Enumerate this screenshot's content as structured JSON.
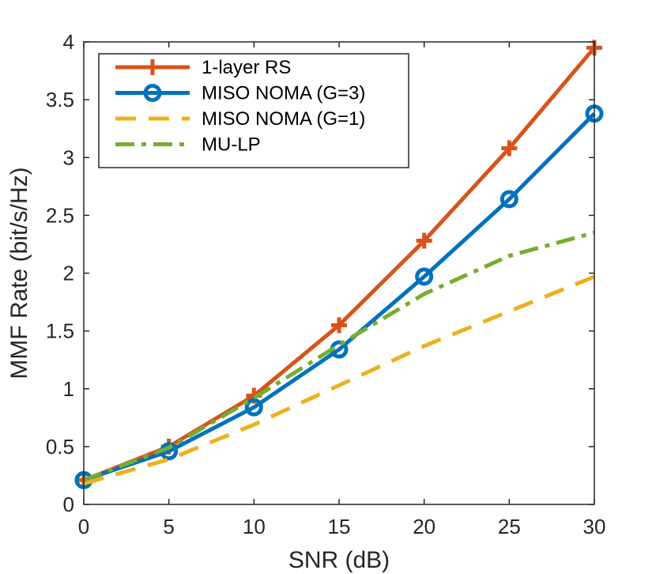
{
  "chart_data": {
    "type": "line",
    "xlabel": "SNR (dB)",
    "ylabel": "MMF Rate (bit/s/Hz)",
    "xlim": [
      0,
      30
    ],
    "ylim": [
      0,
      4
    ],
    "xticks": [
      0,
      5,
      10,
      15,
      20,
      25,
      30
    ],
    "xtick_labels": [
      "0",
      "5",
      "10",
      "15",
      "20",
      "25",
      "30"
    ],
    "yticks": [
      0,
      0.5,
      1,
      1.5,
      2,
      2.5,
      3,
      3.5,
      4
    ],
    "ytick_labels": [
      "0",
      "0.5",
      "1",
      "1.5",
      "2",
      "2.5",
      "3",
      "3.5",
      "4"
    ],
    "grid": false,
    "legend_position": "top-left",
    "x": [
      0,
      5,
      10,
      15,
      20,
      25,
      30
    ],
    "series": [
      {
        "name": "1-layer RS",
        "color": "#D95319",
        "line_style": "solid",
        "marker": "plus",
        "values": [
          0.21,
          0.5,
          0.94,
          1.55,
          2.28,
          3.08,
          3.95
        ]
      },
      {
        "name": "MISO NOMA (G=3)",
        "color": "#0072BD",
        "line_style": "solid",
        "marker": "circle",
        "values": [
          0.21,
          0.46,
          0.84,
          1.34,
          1.97,
          2.64,
          3.38
        ]
      },
      {
        "name": "MISO NOMA (G=1)",
        "color": "#EDB120",
        "line_style": "dashed",
        "marker": "none",
        "values": [
          0.18,
          0.39,
          0.69,
          1.03,
          1.37,
          1.67,
          1.97
        ]
      },
      {
        "name": "MU-LP",
        "color": "#77AC30",
        "line_style": "dashdot",
        "marker": "none",
        "values": [
          0.21,
          0.49,
          0.92,
          1.38,
          1.82,
          2.15,
          2.35
        ]
      }
    ]
  }
}
